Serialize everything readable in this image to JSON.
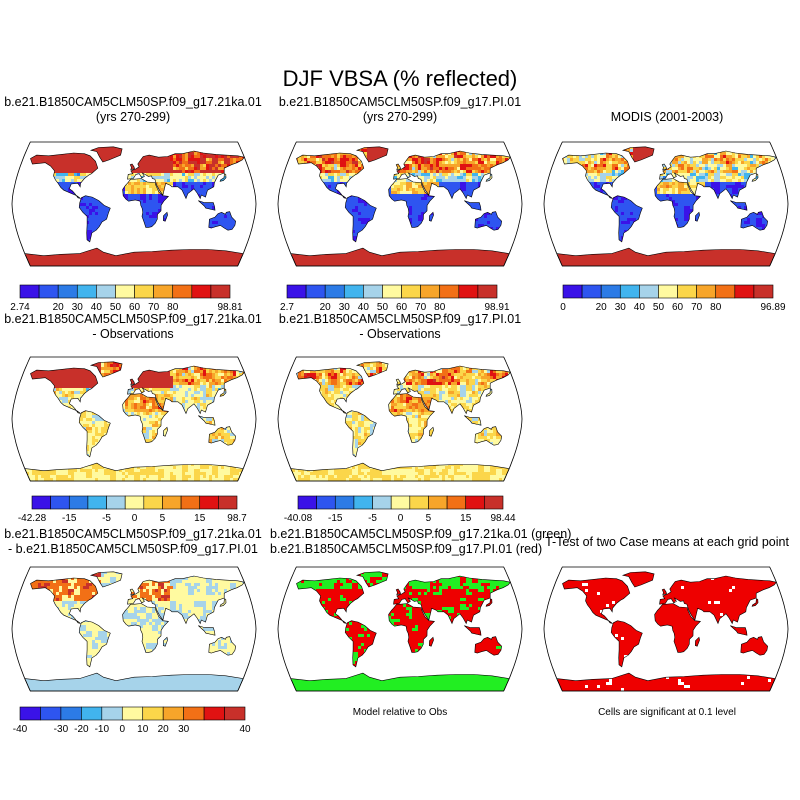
{
  "title": "DJF VBSA (% reflected)",
  "colors": {
    "abs": [
      "#3a12e8",
      "#2e55f0",
      "#2c7be6",
      "#41b4ee",
      "#a6d3ea",
      "#fffaa0",
      "#fbd64a",
      "#f7a52a",
      "#f27016",
      "#e01212",
      "#c8302a"
    ],
    "diff": [
      "#3a12e8",
      "#2e55f0",
      "#2c7be6",
      "#41b4ee",
      "#a6d3ea",
      "#fffaa0",
      "#fbd64a",
      "#f7a52a",
      "#f27016",
      "#e01212",
      "#c8302a"
    ],
    "green": "#22ee22",
    "red": "#ee0000"
  },
  "panels": [
    {
      "id": "p1",
      "title": [
        "b.e21.B1850CAM5CLM50SP.f09_g17.21ka.01",
        "(yrs 270-299)"
      ],
      "kind": "abs-21ka",
      "colorbar": {
        "labels": [
          "2.74",
          "20",
          "30",
          "40",
          "50",
          "60",
          "70",
          "80",
          "98.81"
        ]
      }
    },
    {
      "id": "p2",
      "title": [
        "b.e21.B1850CAM5CLM50SP.f09_g17.PI.01",
        "(yrs 270-299)"
      ],
      "kind": "abs-pi",
      "colorbar": {
        "labels": [
          "2.7",
          "20",
          "30",
          "40",
          "50",
          "60",
          "70",
          "80",
          "98.91"
        ]
      }
    },
    {
      "id": "p3",
      "title": [
        "MODIS (2001-2003)"
      ],
      "kind": "abs-obs",
      "colorbar": {
        "labels": [
          "0",
          "20",
          "30",
          "40",
          "50",
          "60",
          "70",
          "80",
          "96.89"
        ]
      }
    },
    {
      "id": "p4",
      "title": [
        "b.e21.B1850CAM5CLM50SP.f09_g17.21ka.01",
        "- Observations"
      ],
      "kind": "diff-21ka",
      "colorbar": {
        "labels": [
          "-42.28",
          "-15",
          "-5",
          "0",
          "5",
          "15",
          "98.7"
        ]
      }
    },
    {
      "id": "p5",
      "title": [
        "b.e21.B1850CAM5CLM50SP.f09_g17.PI.01",
        "- Observations"
      ],
      "kind": "diff-pi",
      "colorbar": {
        "labels": [
          "-40.08",
          "-15",
          "-5",
          "0",
          "5",
          "15",
          "98.44"
        ]
      }
    },
    {
      "id": "p7",
      "title": [
        "b.e21.B1850CAM5CLM50SP.f09_g17.21ka.01",
        "- b.e21.B1850CAM5CLM50SP.f09_g17.PI.01"
      ],
      "kind": "diff-cases",
      "colorbar": {
        "labels": [
          "-40",
          "-30",
          "-20",
          "-10",
          "0",
          "10",
          "20",
          "30",
          "40"
        ]
      }
    },
    {
      "id": "p8",
      "title": [
        "b.e21.B1850CAM5CLM50SP.f09_g17.21ka.01 (green)",
        "b.e21.B1850CAM5CLM50SP.f09_g17.PI.01 (red)"
      ],
      "kind": "rel-obs",
      "note": "Model relative to Obs"
    },
    {
      "id": "p9",
      "title": [
        "T-Test of two Case means at each grid point"
      ],
      "kind": "ttest",
      "note": "Cells are significant at 0.1 level"
    }
  ],
  "chart_data": {
    "type": "heatmap",
    "title": "DJF VBSA (% reflected)",
    "projection": "Robinson",
    "maps": [
      {
        "title": "b.e21.B1850CAM5CLM50SP.f09_g17.21ka.01 (yrs 270-299)",
        "min": 2.74,
        "max": 98.81,
        "contour_levels": [
          20,
          30,
          40,
          50,
          60,
          70,
          80
        ]
      },
      {
        "title": "b.e21.B1850CAM5CLM50SP.f09_g17.PI.01 (yrs 270-299)",
        "min": 2.7,
        "max": 98.91,
        "contour_levels": [
          20,
          30,
          40,
          50,
          60,
          70,
          80
        ]
      },
      {
        "title": "MODIS (2001-2003)",
        "min": 0,
        "max": 96.89,
        "contour_levels": [
          20,
          30,
          40,
          50,
          60,
          70,
          80
        ]
      },
      {
        "title": "b.e21.B1850CAM5CLM50SP.f09_g17.21ka.01 - Observations",
        "min": -42.28,
        "max": 98.7,
        "contour_levels": [
          -15,
          -5,
          0,
          5,
          15
        ]
      },
      {
        "title": "b.e21.B1850CAM5CLM50SP.f09_g17.PI.01 - Observations",
        "min": -40.08,
        "max": 98.44,
        "contour_levels": [
          -15,
          -5,
          0,
          5,
          15
        ]
      },
      {
        "title": "b.e21.B1850CAM5CLM50SP.f09_g17.21ka.01 - b.e21.B1850CAM5CLM50SP.f09_g17.PI.01",
        "contour_levels": [
          -40,
          -30,
          -20,
          -10,
          0,
          10,
          20,
          30,
          40
        ]
      },
      {
        "title": "b.e21.B1850CAM5CLM50SP.f09_g17.21ka.01 (green) b.e21.B1850CAM5CLM50SP.f09_g17.PI.01 (red)",
        "legend": "Model relative to Obs"
      },
      {
        "title": "T-Test of two Case means at each grid point",
        "legend": "Cells are significant at 0.1 level"
      }
    ]
  }
}
